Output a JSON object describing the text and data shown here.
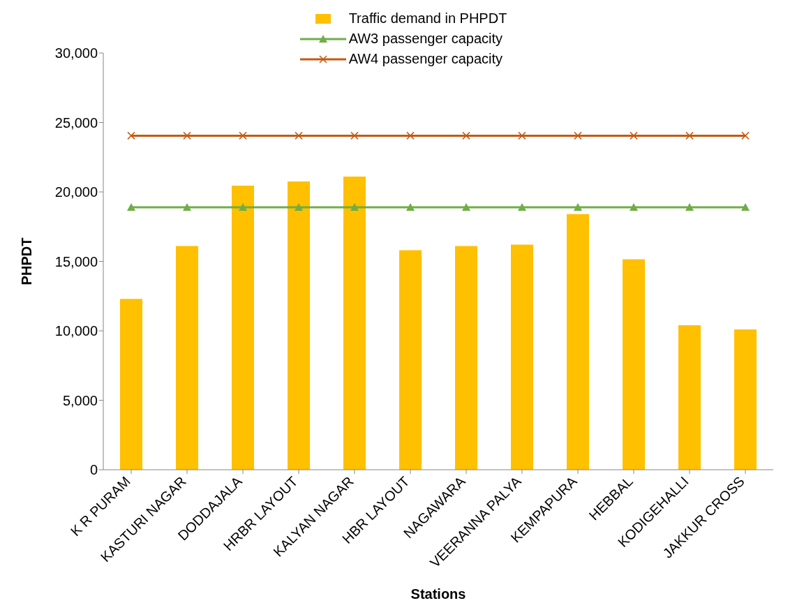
{
  "chart_data": {
    "type": "bar",
    "xlabel": "Stations",
    "ylabel": "PHPDT",
    "categories": [
      "K R PURAM",
      "KASTURI NAGAR",
      "DODDAJALA",
      "HRBR LAYOUT",
      "KALYAN NAGAR",
      "HBR LAYOUT",
      "NAGAWARA",
      "VEERANNA PALYA",
      "KEMPAPURA",
      "HEBBAL",
      "KODIGEHALLI",
      "JAKKUR CROSS"
    ],
    "series": [
      {
        "name": "Traffic demand in PHPDT",
        "color": "#ffc000",
        "values": [
          12300,
          16100,
          20450,
          20750,
          21100,
          15800,
          16100,
          16200,
          18400,
          15150,
          10400,
          10100
        ]
      },
      {
        "name": "AW3 passenger capacity",
        "type": "line",
        "marker": "triangle",
        "color": "#70ad47",
        "values": [
          18900,
          18900,
          18900,
          18900,
          18900,
          18900,
          18900,
          18900,
          18900,
          18900,
          18900,
          18900
        ]
      },
      {
        "name": "AW4 passenger capacity",
        "type": "line",
        "marker": "cross",
        "color": "#c55a11",
        "values": [
          24050,
          24050,
          24050,
          24050,
          24050,
          24050,
          24050,
          24050,
          24050,
          24050,
          24050,
          24050
        ]
      }
    ],
    "ylim": [
      0,
      30000
    ],
    "yticks": [
      {
        "value": 0,
        "label": "0"
      },
      {
        "value": 5000,
        "label": "5,000"
      },
      {
        "value": 10000,
        "label": "10,000"
      },
      {
        "value": 15000,
        "label": "15,000"
      },
      {
        "value": 20000,
        "label": "20,000"
      },
      {
        "value": 25000,
        "label": "25,000"
      },
      {
        "value": 30000,
        "label": "30,000"
      }
    ],
    "grid": false,
    "legend": "top"
  }
}
